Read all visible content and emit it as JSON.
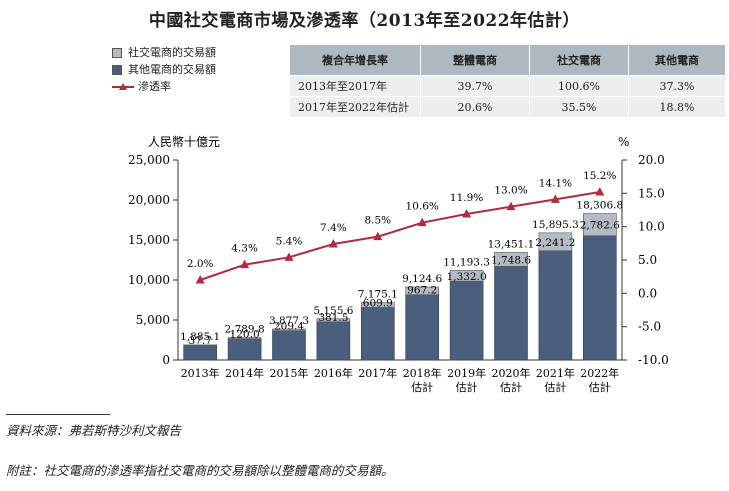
{
  "title": "中國社交電商市場及滲透率（2013年至2022年估計）",
  "legend": {
    "items": [
      {
        "label": "社交電商的交易額",
        "color": "#b3bcc5"
      },
      {
        "label": "其他電商的交易額",
        "color": "#4a5f7e"
      },
      {
        "label": "滲透率",
        "color": "#b22a3c"
      }
    ]
  },
  "cagr_table": {
    "headers": [
      "複合年增長率",
      "整體電商",
      "社交電商",
      "其他電商"
    ],
    "rows": [
      [
        "2013年至2017年",
        "39.7%",
        "100.6%",
        "37.3%"
      ],
      [
        "2017年至2022年估計",
        "20.6%",
        "35.5%",
        "18.8%"
      ]
    ]
  },
  "chart_data": {
    "type": "bar",
    "stacked": true,
    "categories": [
      "2013年",
      "2014年",
      "2015年",
      "2016年",
      "2017年",
      "2018年\n估計",
      "2019年\n估計",
      "2020年\n估計",
      "2021年\n估計",
      "2022年\n估計"
    ],
    "series": [
      {
        "name": "其他電商的交易額",
        "values": [
          1847.4,
          2669.8,
          3667.9,
          4774.1,
          6565.2,
          8157.4,
          9861.3,
          11702.5,
          13654.1,
          15524.2
        ]
      },
      {
        "name": "社交電商的交易額",
        "values": [
          37.7,
          120.0,
          209.4,
          381.5,
          609.9,
          967.2,
          1332.0,
          1748.6,
          2241.2,
          2782.6
        ]
      }
    ],
    "totals": [
      1885.1,
      2789.8,
      3877.3,
      5155.6,
      7175.1,
      9124.6,
      11193.3,
      13451.1,
      15895.3,
      18306.8
    ],
    "total_labels": [
      "1,885.1",
      "2,789.8",
      "3,877.3",
      "5,155.6",
      "7,175.1",
      "9,124.6",
      "11,193.3",
      "13,451.1",
      "15,895.3",
      "18,306.8"
    ],
    "social_labels": [
      "37.7",
      "120.0",
      "209.4",
      "381.5",
      "609.9",
      "967.2",
      "1,332.0",
      "1,748.6",
      "2,241.2",
      "2,782.6"
    ],
    "penetration": {
      "name": "滲透率",
      "values": [
        2.0,
        4.3,
        5.4,
        7.4,
        8.5,
        10.6,
        11.9,
        13.0,
        14.1,
        15.2
      ],
      "labels": [
        "2.0%",
        "4.3%",
        "5.4%",
        "7.4%",
        "8.5%",
        "10.6%",
        "11.9%",
        "13.0%",
        "14.1%",
        "15.2%"
      ]
    },
    "y_left": {
      "label": "人民幣十億元",
      "range": [
        0,
        25000
      ],
      "ticks": [
        "0",
        "5,000",
        "10,000",
        "15,000",
        "20,000",
        "25,000"
      ]
    },
    "y_right": {
      "label": "%",
      "range": [
        -10.0,
        20.0
      ],
      "ticks": [
        "-10.0",
        "-5.0",
        "0.0",
        "5.0",
        "10.0",
        "15.0",
        "20.0"
      ]
    },
    "colors": {
      "other": "#4a5f7e",
      "social": "#b3bcc5",
      "line": "#b22a3c"
    }
  },
  "footer": {
    "source": "資料來源：弗若斯特沙利文報告",
    "note": "附註：社交電商的滲透率指社交電商的交易額除以整體電商的交易額。"
  }
}
